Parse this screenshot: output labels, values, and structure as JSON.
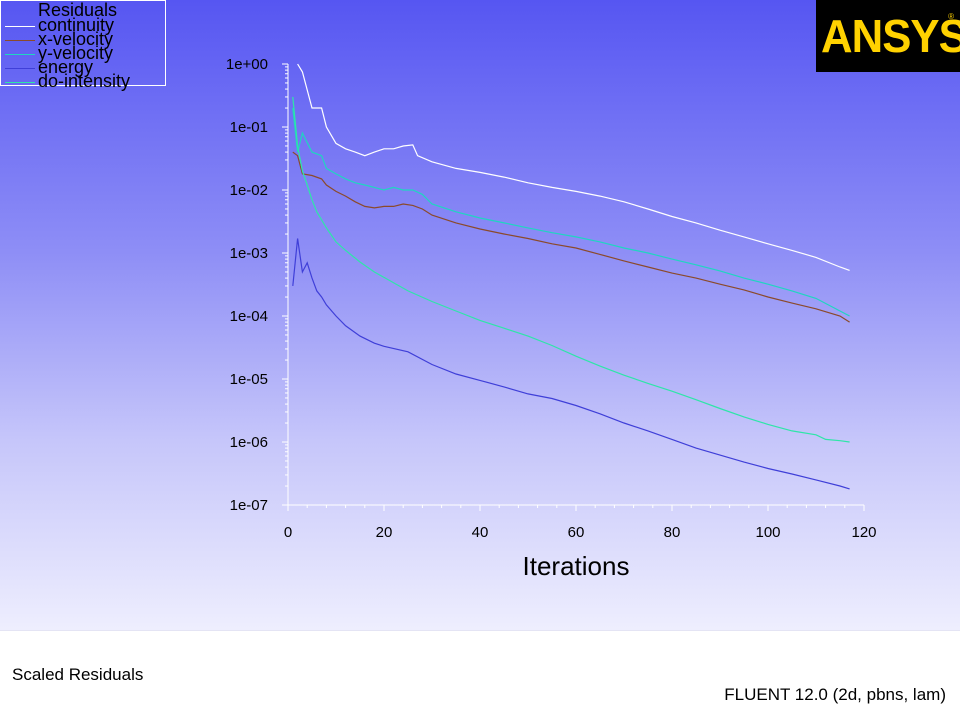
{
  "footer": {
    "title": "Scaled Residuals",
    "version": "FLUENT 12.0 (2d, pbns, lam)"
  },
  "logo": {
    "text": "ANSYS",
    "reg_mark": "®"
  },
  "colors": {
    "continuity": "#ffffff",
    "x-velocity": "#8b4a2b",
    "y-velocity": "#1fd6c0",
    "energy": "#3f3fd8",
    "do-intensity": "#2ee6a8"
  },
  "chart_data": {
    "type": "line",
    "title": "",
    "legend_title": "Residuals",
    "legend_position": "top-left",
    "xlabel": "Iterations",
    "ylabel": "",
    "xlim": [
      0,
      120
    ],
    "ylim": [
      1e-07,
      1
    ],
    "yscale": "log",
    "x_ticks": [
      0,
      20,
      40,
      60,
      80,
      100,
      120
    ],
    "y_ticks": [
      1.0,
      0.1,
      0.01,
      0.001,
      0.0001,
      1e-05,
      1e-06,
      1e-07
    ],
    "y_tick_labels": [
      "1e+00",
      "1e-01",
      "1e-02",
      "1e-03",
      "1e-04",
      "1e-05",
      "1e-06",
      "1e-07"
    ],
    "grid": false,
    "series": [
      {
        "name": "continuity",
        "x": [
          2,
          3,
          5,
          7,
          8,
          10,
          12,
          14,
          16,
          18,
          20,
          22,
          24,
          26,
          27,
          30,
          35,
          40,
          45,
          50,
          55,
          60,
          65,
          70,
          75,
          80,
          85,
          90,
          95,
          100,
          105,
          110,
          115,
          117
        ],
        "y": [
          1.0,
          0.75,
          0.2,
          0.2,
          0.1,
          0.055,
          0.045,
          0.04,
          0.035,
          0.04,
          0.045,
          0.045,
          0.05,
          0.052,
          0.035,
          0.028,
          0.022,
          0.019,
          0.016,
          0.013,
          0.011,
          0.0095,
          0.008,
          0.0065,
          0.005,
          0.0038,
          0.003,
          0.0023,
          0.0018,
          0.0014,
          0.0011,
          0.00085,
          0.0006,
          0.00053
        ]
      },
      {
        "name": "x-velocity",
        "x": [
          1,
          2,
          3,
          5,
          7,
          8,
          10,
          12,
          14,
          16,
          18,
          20,
          22,
          24,
          26,
          28,
          30,
          35,
          40,
          45,
          50,
          55,
          60,
          65,
          70,
          75,
          80,
          85,
          90,
          95,
          100,
          105,
          110,
          115,
          117
        ],
        "y": [
          0.04,
          0.035,
          0.018,
          0.017,
          0.015,
          0.012,
          0.0095,
          0.008,
          0.0065,
          0.0055,
          0.0052,
          0.0055,
          0.0055,
          0.006,
          0.0057,
          0.005,
          0.004,
          0.003,
          0.0024,
          0.002,
          0.0017,
          0.0014,
          0.0012,
          0.00095,
          0.00075,
          0.0006,
          0.00048,
          0.0004,
          0.00032,
          0.00026,
          0.0002,
          0.00016,
          0.00013,
          0.0001,
          8e-05
        ]
      },
      {
        "name": "y-velocity",
        "x": [
          1,
          2,
          3,
          5,
          7,
          8,
          10,
          12,
          14,
          16,
          18,
          20,
          22,
          24,
          26,
          28,
          30,
          35,
          40,
          45,
          50,
          55,
          60,
          65,
          70,
          75,
          80,
          85,
          90,
          95,
          100,
          105,
          110,
          115,
          117
        ],
        "y": [
          0.2,
          0.04,
          0.08,
          0.04,
          0.035,
          0.022,
          0.018,
          0.015,
          0.013,
          0.012,
          0.011,
          0.01,
          0.011,
          0.01,
          0.01,
          0.0085,
          0.006,
          0.0045,
          0.0036,
          0.003,
          0.0025,
          0.0021,
          0.0018,
          0.0015,
          0.0012,
          0.001,
          0.0008,
          0.00065,
          0.00052,
          0.0004,
          0.00032,
          0.00025,
          0.00019,
          0.00012,
          0.0001
        ]
      },
      {
        "name": "energy",
        "x": [
          1,
          2,
          3,
          4,
          5,
          6,
          7,
          8,
          10,
          12,
          15,
          18,
          20,
          25,
          30,
          35,
          40,
          45,
          50,
          55,
          60,
          65,
          70,
          75,
          80,
          85,
          90,
          95,
          100,
          105,
          110,
          115,
          117
        ],
        "y": [
          0.0003,
          0.0017,
          0.0005,
          0.0007,
          0.0004,
          0.00025,
          0.0002,
          0.00015,
          0.0001,
          7e-05,
          4.8e-05,
          3.7e-05,
          3.3e-05,
          2.7e-05,
          1.7e-05,
          1.2e-05,
          9.5e-06,
          7.5e-06,
          5.8e-06,
          4.9e-06,
          3.8e-06,
          2.8e-06,
          2e-06,
          1.5e-06,
          1.1e-06,
          8e-07,
          6.2e-07,
          4.8e-07,
          3.8e-07,
          3.1e-07,
          2.5e-07,
          2e-07,
          1.8e-07
        ]
      },
      {
        "name": "do-intensity",
        "x": [
          1,
          2,
          3,
          4,
          5,
          6,
          8,
          10,
          12,
          15,
          18,
          20,
          25,
          30,
          35,
          40,
          45,
          50,
          55,
          60,
          65,
          70,
          75,
          80,
          85,
          90,
          95,
          100,
          105,
          110,
          112,
          115,
          117
        ],
        "y": [
          0.3,
          0.05,
          0.02,
          0.012,
          0.007,
          0.0045,
          0.0025,
          0.0015,
          0.0011,
          0.00072,
          0.0005,
          0.00041,
          0.00025,
          0.00017,
          0.00012,
          8.5e-05,
          6.4e-05,
          4.8e-05,
          3.4e-05,
          2.3e-05,
          1.6e-05,
          1.15e-05,
          8.5e-06,
          6.4e-06,
          4.7e-06,
          3.4e-06,
          2.5e-06,
          1.9e-06,
          1.5e-06,
          1.3e-06,
          1.1e-06,
          1.05e-06,
          1e-06
        ]
      }
    ]
  }
}
